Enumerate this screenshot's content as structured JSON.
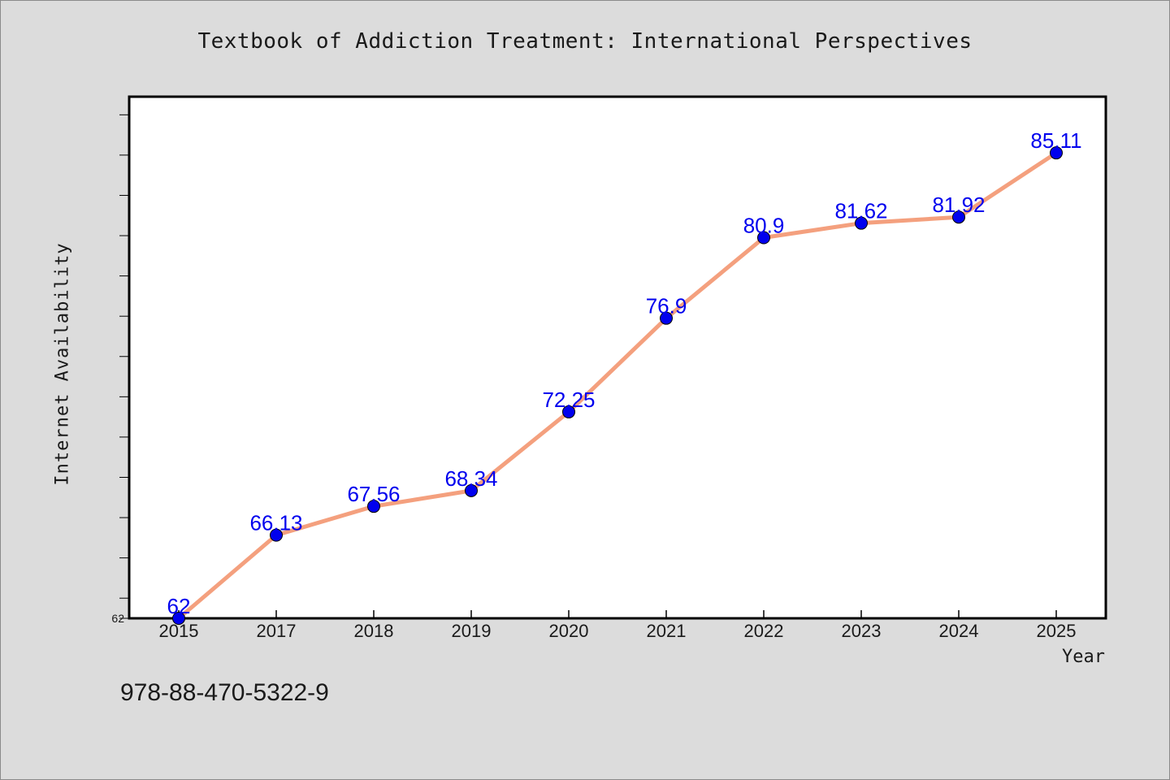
{
  "chart_data": {
    "type": "line",
    "title": "Textbook of Addiction Treatment: International Perspectives",
    "xlabel": "Year",
    "ylabel": "Internet Availability",
    "categories": [
      "2015",
      "2017",
      "2018",
      "2019",
      "2020",
      "2021",
      "2022",
      "2023",
      "2024",
      "2025"
    ],
    "values": [
      62,
      66.13,
      67.56,
      68.34,
      72.25,
      76.9,
      80.9,
      81.62,
      81.92,
      85.11
    ],
    "data_labels": [
      "62",
      "66.13",
      "67.56",
      "68.34",
      "72.25",
      "76.9",
      "80.9",
      "81.62",
      "81.92",
      "85.11"
    ],
    "y_tick_labels": [
      "62"
    ],
    "ylim": [
      62,
      87.9
    ],
    "grid": false,
    "legend": "none",
    "colors": {
      "line": "#f4a07e",
      "marker": "#0000ee",
      "data_label": "#0000ee",
      "background": "#dcdcdc",
      "plot_background": "#ffffff"
    }
  },
  "footer": {
    "isbn": "978-88-470-5322-9"
  }
}
